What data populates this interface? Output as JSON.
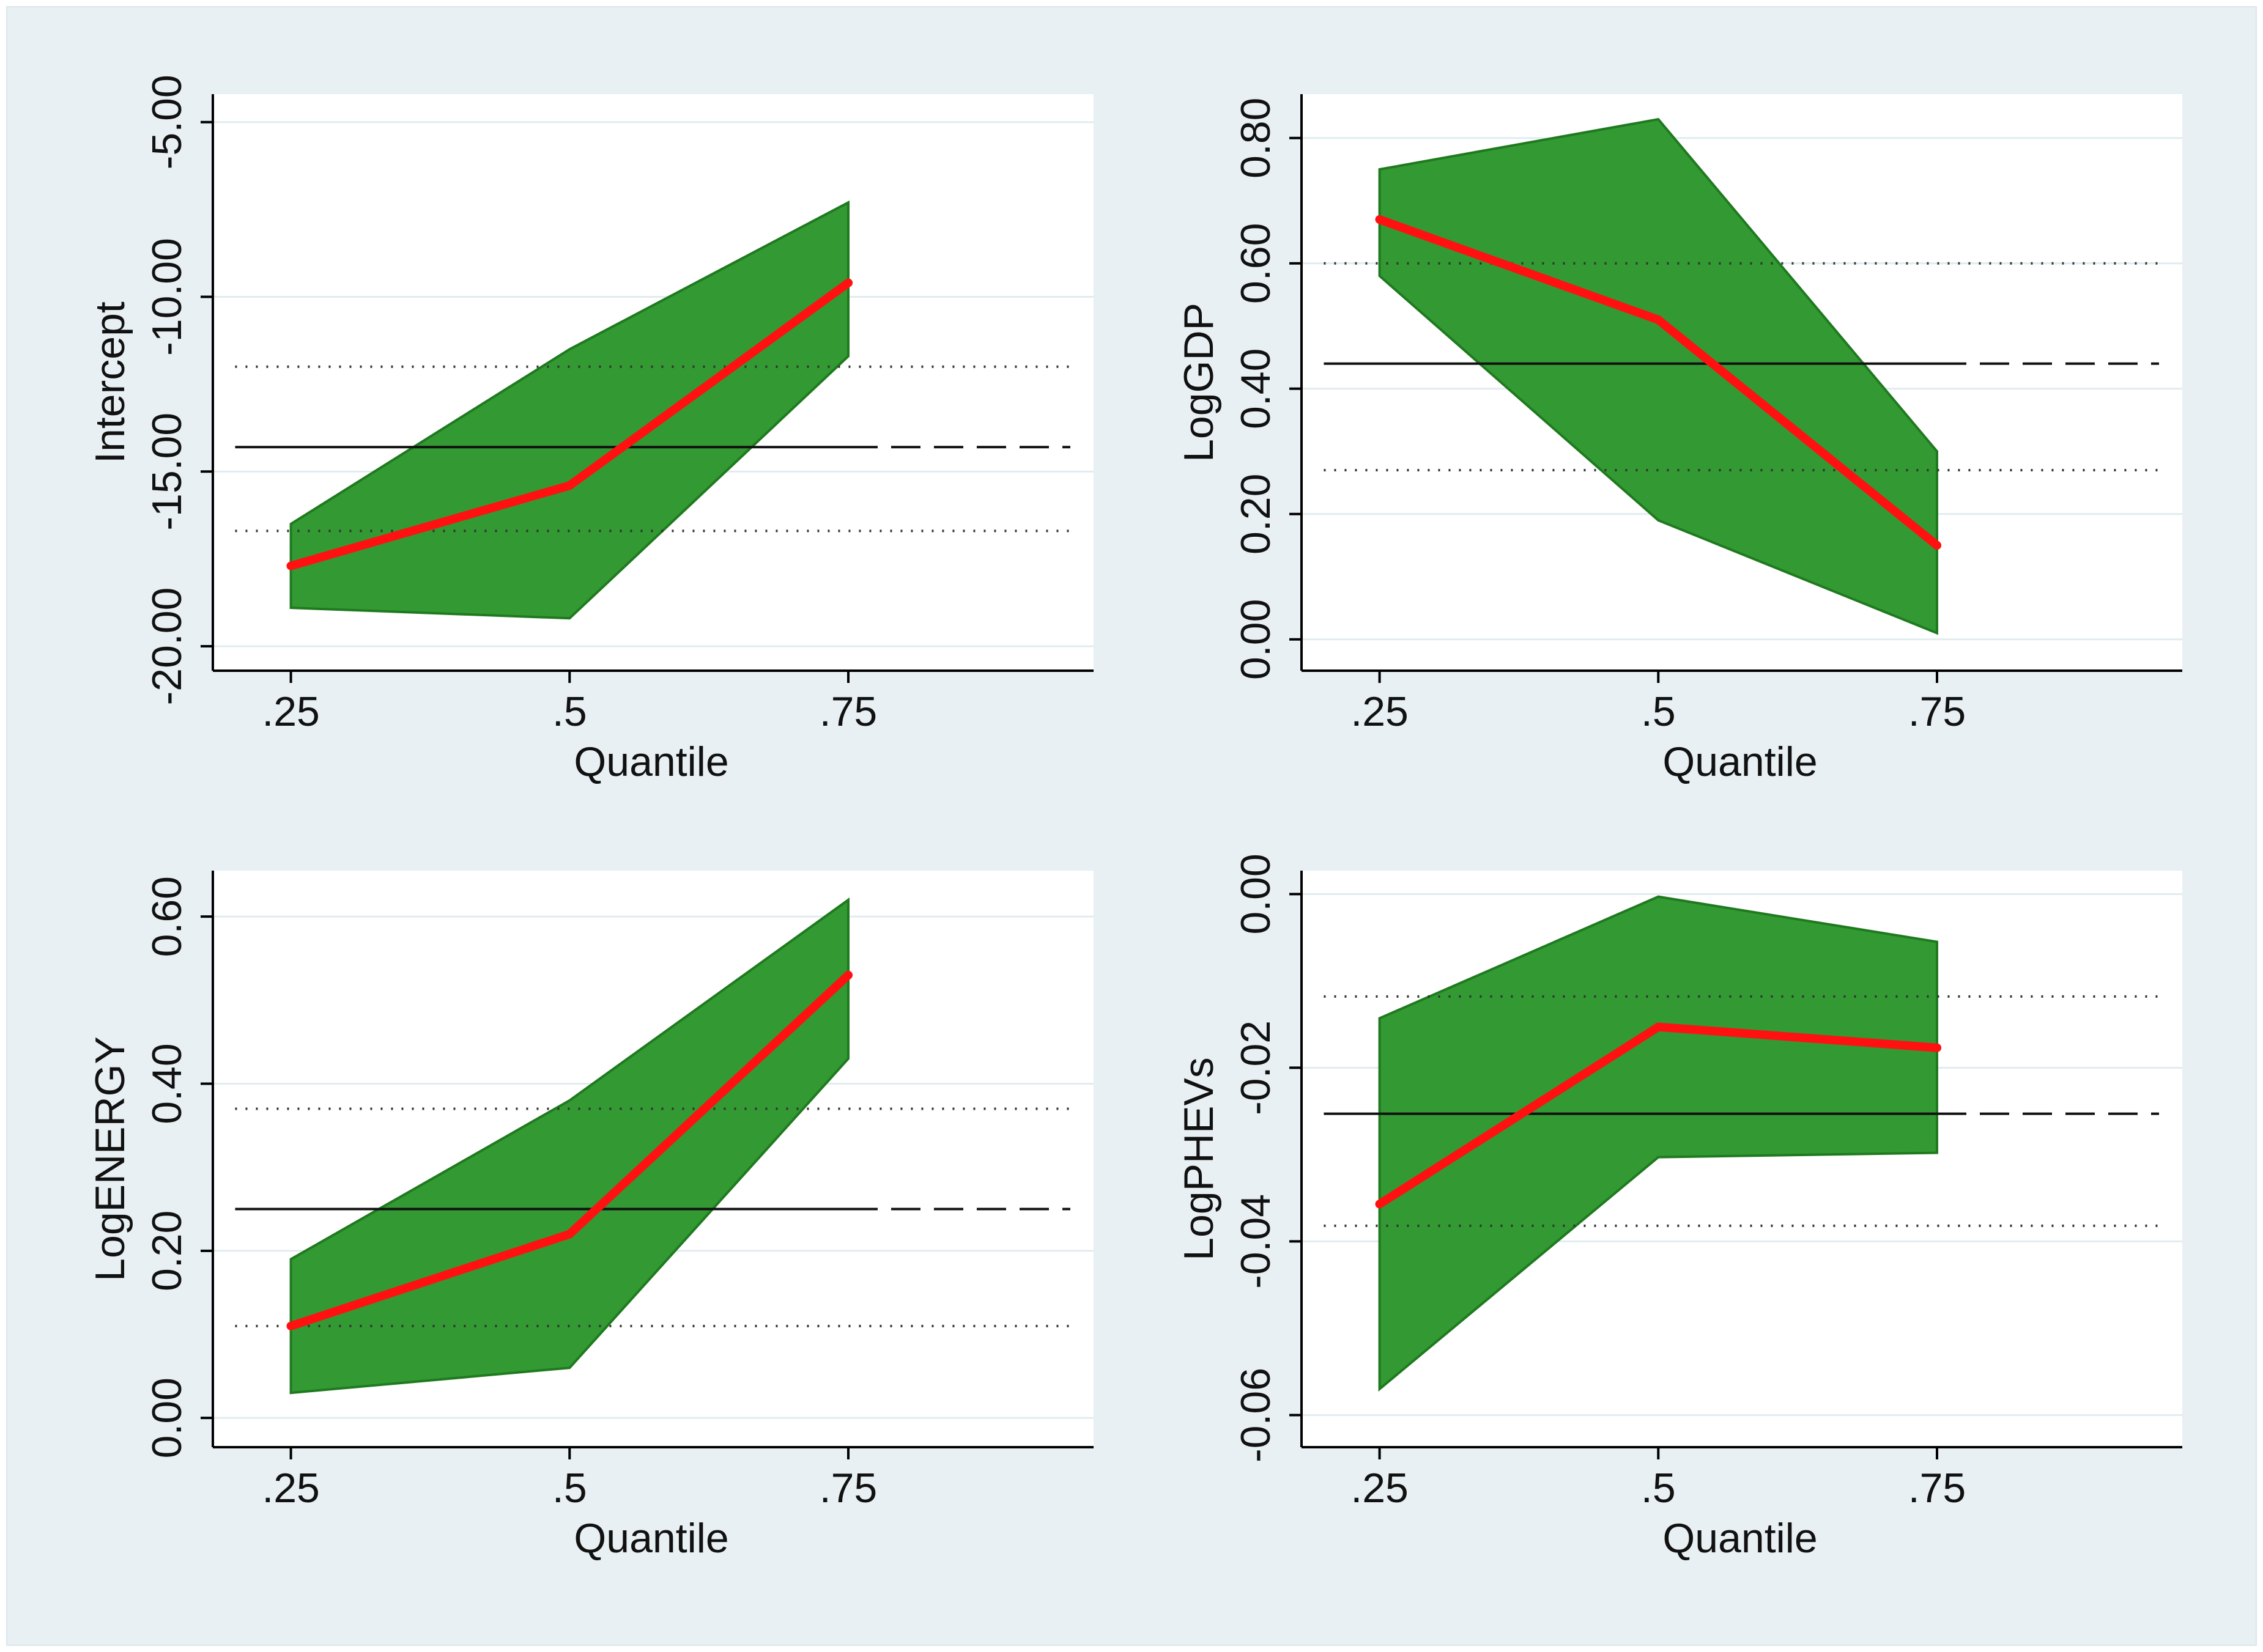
{
  "colors": {
    "background": "#e8f0f3",
    "plot_background": "#ffffff",
    "band_fill": "#339933",
    "band_edge": "#1f7a1f",
    "quantile_line": "#ff1111",
    "ols_line": "#111111",
    "ci_dots": "#333333",
    "gridline": "#e1ecef"
  },
  "chart_data": [
    {
      "type": "line",
      "panel": "top-left",
      "xlabel": "Quantile",
      "ylabel": "Intercept",
      "x": [
        0.25,
        0.5,
        0.75
      ],
      "x_tick_values": [
        0.25,
        0.5,
        0.75
      ],
      "x_tick_labels": [
        ".25",
        ".5",
        ".75"
      ],
      "xlim": [
        0.18,
        0.97
      ],
      "ylim": [
        -20.7,
        -4.2
      ],
      "y_tick_values": [
        -20,
        -15,
        -10,
        -5
      ],
      "y_tick_labels": [
        "-20.00",
        "-15.00",
        "-10.00",
        "-5.00"
      ],
      "series": [
        {
          "name": "Quantile estimate",
          "values": [
            -17.7,
            -15.4,
            -9.6
          ]
        },
        {
          "name": "CI lower",
          "values": [
            -18.9,
            -19.2,
            -11.7
          ]
        },
        {
          "name": "CI upper",
          "values": [
            -16.5,
            -11.5,
            -7.3
          ]
        }
      ],
      "ols": {
        "estimate": -14.3,
        "ci_lower": -16.7,
        "ci_upper": -12.0
      }
    },
    {
      "type": "line",
      "panel": "top-right",
      "xlabel": "Quantile",
      "ylabel": "LogGDP",
      "x": [
        0.25,
        0.5,
        0.75
      ],
      "x_tick_values": [
        0.25,
        0.5,
        0.75
      ],
      "x_tick_labels": [
        ".25",
        ".5",
        ".75"
      ],
      "xlim": [
        0.18,
        0.97
      ],
      "ylim": [
        -0.05,
        0.87
      ],
      "y_tick_values": [
        0,
        0.2,
        0.4,
        0.6,
        0.8
      ],
      "y_tick_labels": [
        "0.00",
        "0.20",
        "0.40",
        "0.60",
        "0.80"
      ],
      "series": [
        {
          "name": "Quantile estimate",
          "values": [
            0.67,
            0.51,
            0.15
          ]
        },
        {
          "name": "CI lower",
          "values": [
            0.58,
            0.19,
            0.01
          ]
        },
        {
          "name": "CI upper",
          "values": [
            0.75,
            0.83,
            0.3
          ]
        }
      ],
      "ols": {
        "estimate": 0.44,
        "ci_lower": 0.27,
        "ci_upper": 0.6
      }
    },
    {
      "type": "line",
      "panel": "bottom-left",
      "xlabel": "Quantile",
      "ylabel": "LogENERGY",
      "x": [
        0.25,
        0.5,
        0.75
      ],
      "x_tick_values": [
        0.25,
        0.5,
        0.75
      ],
      "x_tick_labels": [
        ".25",
        ".5",
        ".75"
      ],
      "xlim": [
        0.18,
        0.97
      ],
      "ylim": [
        -0.035,
        0.655
      ],
      "y_tick_values": [
        0,
        0.2,
        0.4,
        0.6
      ],
      "y_tick_labels": [
        "0.00",
        "0.20",
        "0.40",
        "0.60"
      ],
      "series": [
        {
          "name": "Quantile estimate",
          "values": [
            0.11,
            0.22,
            0.53
          ]
        },
        {
          "name": "CI lower",
          "values": [
            0.03,
            0.06,
            0.43
          ]
        },
        {
          "name": "CI upper",
          "values": [
            0.19,
            0.38,
            0.62
          ]
        }
      ],
      "ols": {
        "estimate": 0.25,
        "ci_lower": 0.11,
        "ci_upper": 0.37
      }
    },
    {
      "type": "line",
      "panel": "bottom-right",
      "xlabel": "Quantile",
      "ylabel": "LogPHEVs",
      "x": [
        0.25,
        0.5,
        0.75
      ],
      "x_tick_values": [
        0.25,
        0.5,
        0.75
      ],
      "x_tick_labels": [
        ".25",
        ".5",
        ".75"
      ],
      "xlim": [
        0.18,
        0.97
      ],
      "ylim": [
        -0.0637,
        0.0027
      ],
      "y_tick_values": [
        -0.06,
        -0.04,
        -0.02,
        0
      ],
      "y_tick_labels": [
        "-0.06",
        "-0.04",
        "-0.02",
        "0.00"
      ],
      "series": [
        {
          "name": "Quantile estimate",
          "values": [
            -0.0357,
            -0.0153,
            -0.0177
          ]
        },
        {
          "name": "CI lower",
          "values": [
            -0.057,
            -0.0303,
            -0.0298
          ]
        },
        {
          "name": "CI upper",
          "values": [
            -0.0143,
            -0.0003,
            -0.0055
          ]
        }
      ],
      "ols": {
        "estimate": -0.0253,
        "ci_lower": -0.0382,
        "ci_upper": -0.0118
      }
    }
  ]
}
